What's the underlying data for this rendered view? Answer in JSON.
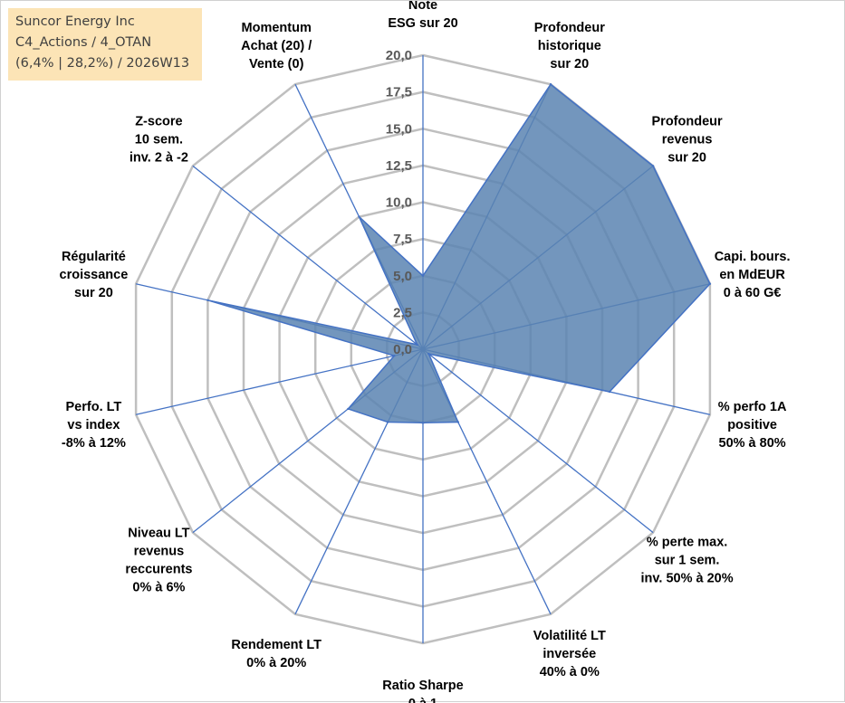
{
  "info": {
    "company": "Suncor Energy Inc",
    "category": "C4_Actions / 4_OTAN",
    "stats": "(6,4% | 28,2%) / 2026W13"
  },
  "colors": {
    "fill": "#5b84b1",
    "stroke": "#4472c4",
    "grid": "#bfbfbf",
    "info_bg": "#fce4b6"
  },
  "chart_data": {
    "type": "radar",
    "title": "",
    "rmin": 0,
    "rmax": 20,
    "ticks": [
      "0,0",
      "2,5",
      "5,0",
      "7,5",
      "10,0",
      "12,5",
      "15,0",
      "17,5",
      "20,0"
    ],
    "axes": [
      {
        "label": [
          "Note",
          "ESG sur 20"
        ],
        "value": 5.0
      },
      {
        "label": [
          "Profondeur",
          "historique",
          "sur 20"
        ],
        "value": 20.0
      },
      {
        "label": [
          "Profondeur",
          "revenus",
          "sur 20"
        ],
        "value": 20.0
      },
      {
        "label": [
          "Capi. bours.",
          "en MdEUR",
          "0 à 60 G€"
        ],
        "value": 20.0
      },
      {
        "label": [
          "% perfo 1A",
          "positive",
          "50% à 80%"
        ],
        "value": 13.0
      },
      {
        "label": [
          "% perte max.",
          "sur 1 sem.",
          "inv. 50% à 20%"
        ],
        "value": 0.5
      },
      {
        "label": [
          "Volatilité LT",
          "inversée",
          "40% à 0%"
        ],
        "value": 5.5
      },
      {
        "label": [
          "Ratio Sharpe",
          "0 à 1"
        ],
        "value": 5.0
      },
      {
        "label": [
          "Rendement LT",
          "0% à 20%"
        ],
        "value": 5.5
      },
      {
        "label": [
          "Niveau LT",
          "revenus",
          "reccurents",
          "0% à 6%"
        ],
        "value": 6.5
      },
      {
        "label": [
          "Perfo. LT",
          "vs index",
          "-8% à 12%"
        ],
        "value": 2.0
      },
      {
        "label": [
          "Régularité",
          "croissance",
          "sur 20"
        ],
        "value": 15.0
      },
      {
        "label": [
          "Z-score",
          "10 sem.",
          "inv. 2 à -2"
        ],
        "value": 0.5
      },
      {
        "label": [
          "Momentum",
          "Achat (20) /",
          "Vente (0)"
        ],
        "value": 10.0
      }
    ]
  }
}
